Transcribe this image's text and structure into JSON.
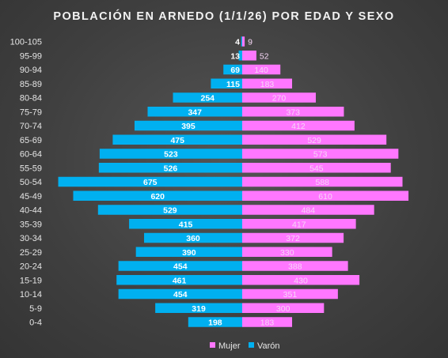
{
  "chart_data": {
    "type": "bar",
    "orientation": "horizontal",
    "title": "POBLACIÓN EN ARNEDO (1/1/26) POR EDAD Y SEXO",
    "categories": [
      "100-105",
      "95-99",
      "90-94",
      "85-89",
      "80-84",
      "75-79",
      "70-74",
      "65-69",
      "60-64",
      "55-59",
      "50-54",
      "45-49",
      "40-44",
      "35-39",
      "30-34",
      "25-29",
      "20-24",
      "15-19",
      "10-14",
      "5-9",
      "0-4"
    ],
    "series": [
      {
        "name": "Mujer",
        "color": "#ff77ff",
        "values": [
          9,
          52,
          140,
          183,
          270,
          373,
          412,
          529,
          573,
          545,
          588,
          610,
          484,
          417,
          372,
          330,
          388,
          430,
          351,
          300,
          183
        ]
      },
      {
        "name": "Varón",
        "color": "#00b0f0",
        "values": [
          4,
          13,
          69,
          115,
          254,
          347,
          395,
          475,
          523,
          526,
          675,
          620,
          529,
          415,
          360,
          390,
          454,
          461,
          454,
          319,
          198
        ]
      }
    ],
    "legend_position": "bottom",
    "grid": false
  }
}
